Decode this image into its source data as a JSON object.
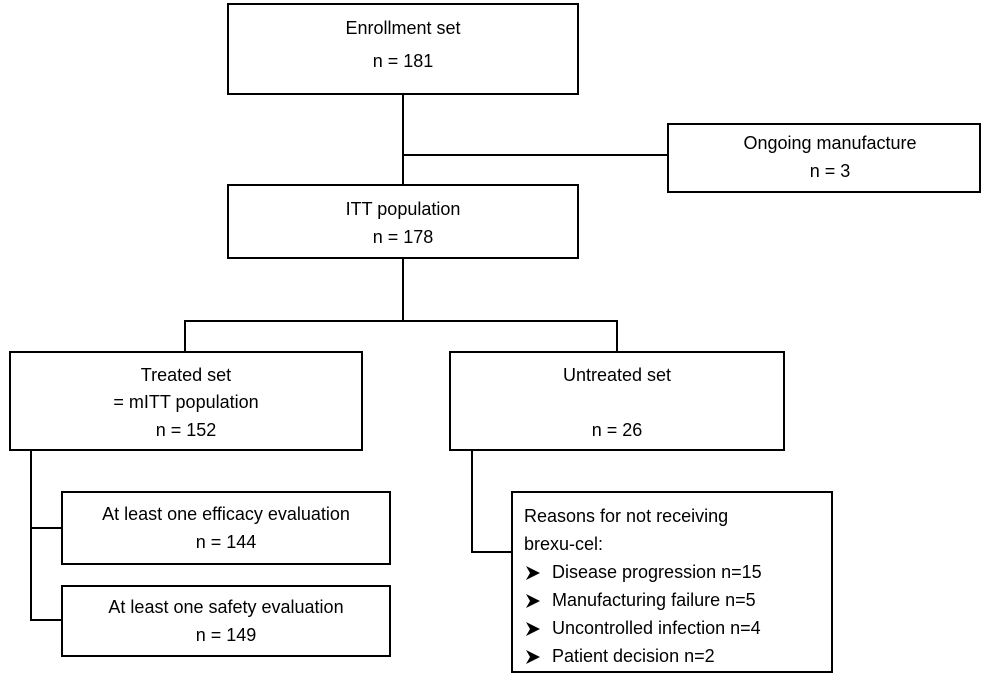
{
  "nodes": [
    {
      "lines": [
        "Enrollment set",
        "n = 181"
      ]
    },
    {
      "lines": [
        "Ongoing manufacture",
        "n = 3"
      ]
    },
    {
      "lines": [
        "ITT population",
        "n = 178"
      ]
    },
    {
      "lines": [
        "Treated set",
        "= mITT population",
        "n = 152"
      ]
    },
    {
      "lines": [
        "Untreated set",
        "n = 26"
      ]
    },
    {
      "lines": [
        "At least one efficacy evaluation",
        "n = 144"
      ]
    },
    {
      "lines": [
        "At least one safety evaluation",
        "n = 149"
      ]
    },
    {
      "lines": [
        "Reasons for not receiving",
        "brexu-cel:"
      ],
      "bullets": [
        "Disease progression n=15",
        "Manufacturing failure n=5",
        "Uncontrolled infection n=4",
        "Patient decision n=2"
      ]
    }
  ]
}
